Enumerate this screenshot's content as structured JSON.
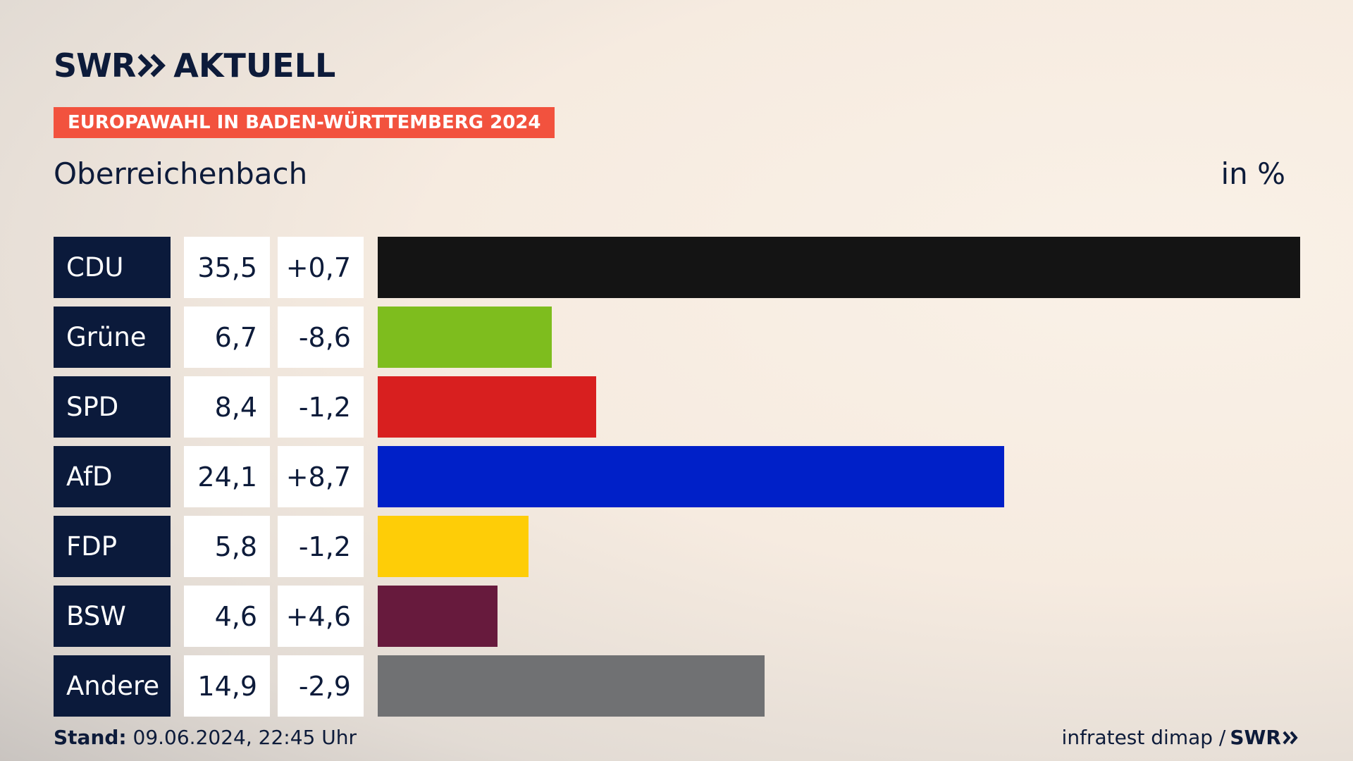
{
  "header": {
    "brand": "SWR",
    "program": "AKTUELL",
    "banner": "EUROPAWAHL IN BADEN-WÜRTTEMBERG 2024",
    "location": "Oberreichenbach",
    "unit": "in %"
  },
  "footer": {
    "stand_label": "Stand:",
    "stand_value": " 09.06.2024, 22:45 Uhr",
    "source": "infratest dimap /",
    "source_brand": "SWR"
  },
  "chart_data": {
    "type": "bar",
    "orientation": "horizontal",
    "categories": [
      "CDU",
      "Grüne",
      "SPD",
      "AfD",
      "FDP",
      "BSW",
      "Andere"
    ],
    "values": [
      35.5,
      6.7,
      8.4,
      24.1,
      5.8,
      4.6,
      14.9
    ],
    "value_labels": [
      "35,5",
      "6,7",
      "8,4",
      "24,1",
      "5,8",
      "4,6",
      "14,9"
    ],
    "change_labels": [
      "+0,7",
      "-8,6",
      "-1,2",
      "+8,7",
      "-1,2",
      "+4,6",
      "-2,9"
    ],
    "colors": [
      "#141414",
      "#7ebd1e",
      "#d81f1f",
      "#0020c8",
      "#fecd07",
      "#671a3d",
      "#707173"
    ],
    "xlim": [
      0,
      35.5
    ]
  }
}
